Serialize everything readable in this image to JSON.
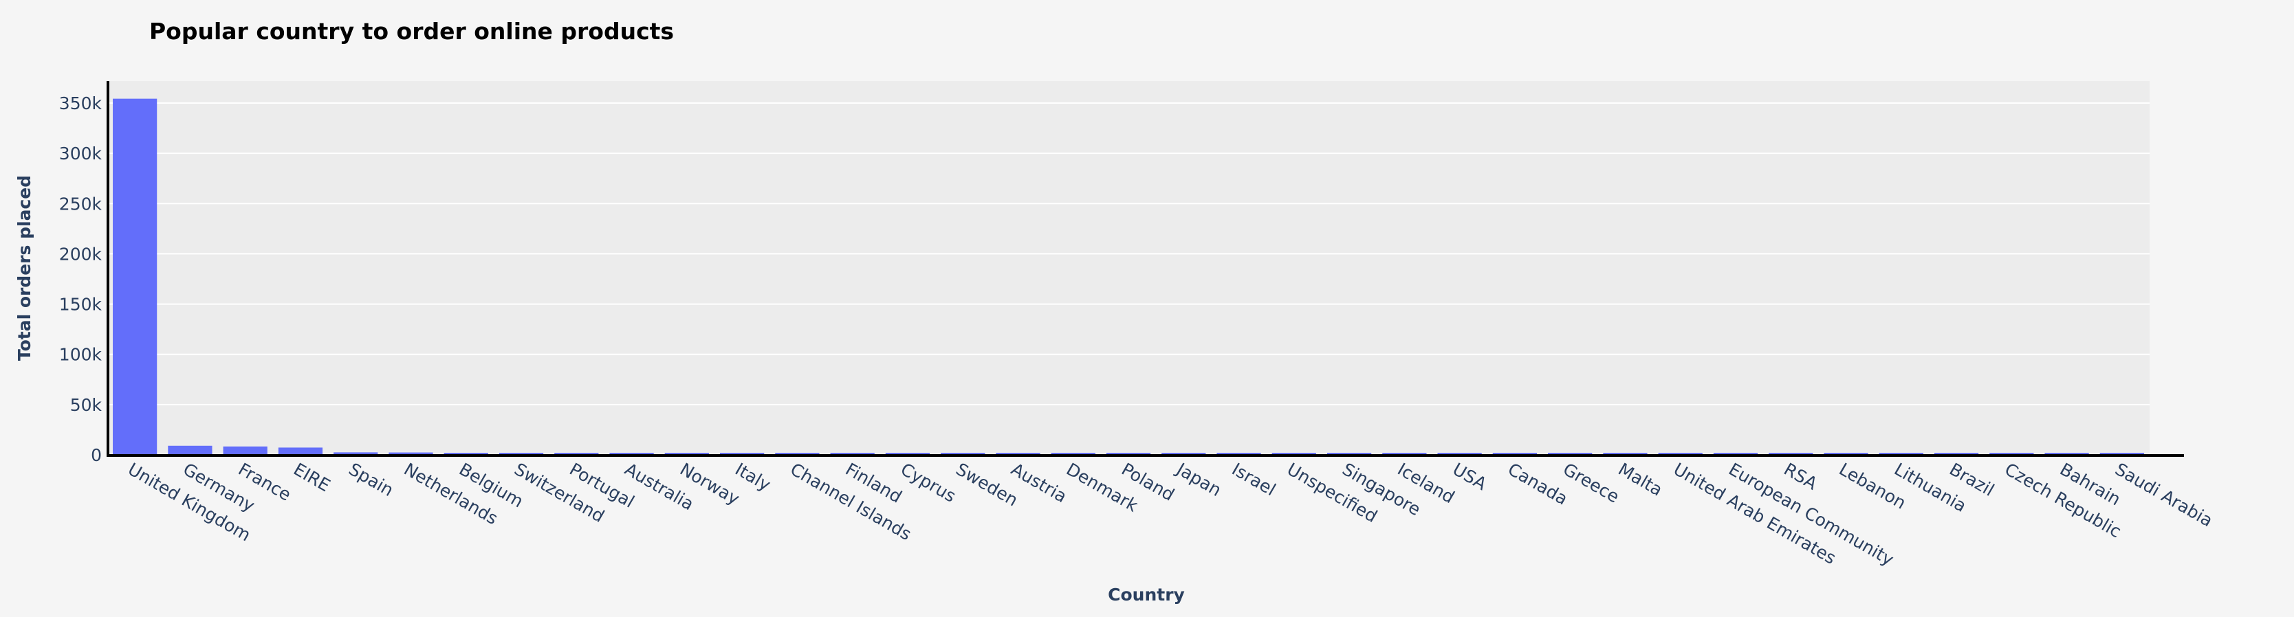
{
  "chart_data": {
    "type": "bar",
    "title": "Popular country to order online products",
    "xlabel": "Country",
    "ylabel": "Total orders placed",
    "ylim": [
      0,
      370000
    ],
    "y_ticks": [
      0,
      50000,
      100000,
      150000,
      200000,
      250000,
      300000,
      350000
    ],
    "y_tick_labels": [
      "0",
      "50k",
      "100k",
      "150k",
      "200k",
      "250k",
      "300k",
      "350k"
    ],
    "grid": true,
    "bar_color": "#636efa",
    "plot_background": "#ececec",
    "paper_background": "#f5f5f5",
    "categories": [
      "United Kingdom",
      "Germany",
      "France",
      "EIRE",
      "Spain",
      "Netherlands",
      "Belgium",
      "Switzerland",
      "Portugal",
      "Australia",
      "Norway",
      "Italy",
      "Channel Islands",
      "Finland",
      "Cyprus",
      "Sweden",
      "Austria",
      "Denmark",
      "Poland",
      "Japan",
      "Israel",
      "Unspecified",
      "Singapore",
      "Iceland",
      "USA",
      "Canada",
      "Greece",
      "Malta",
      "United Arab Emirates",
      "European Community",
      "RSA",
      "Lebanon",
      "Lithuania",
      "Brazil",
      "Czech Republic",
      "Bahrain",
      "Saudi Arabia"
    ],
    "values": [
      354345,
      9042,
      8342,
      7238,
      2485,
      2363,
      2031,
      1842,
      1462,
      1185,
      1072,
      758,
      748,
      685,
      614,
      451,
      398,
      380,
      330,
      321,
      248,
      244,
      222,
      182,
      179,
      151,
      145,
      112,
      68,
      60,
      57,
      45,
      35,
      32,
      25,
      17,
      9
    ]
  }
}
